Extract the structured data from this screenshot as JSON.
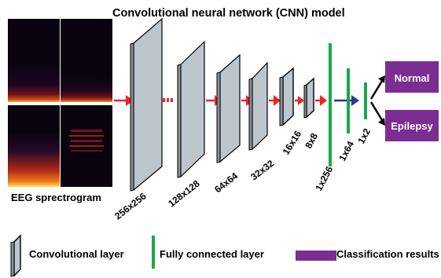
{
  "title": "Convolutional neural network (CNN) model",
  "input": {
    "label": "EEG sprectrogram"
  },
  "layers": [
    {
      "label": "256x256"
    },
    {
      "label": "128x128"
    },
    {
      "label": "64x64"
    },
    {
      "label": "32x32"
    },
    {
      "label": "16x16"
    },
    {
      "label": "8x8"
    }
  ],
  "fully_connected": [
    {
      "label": "1x256"
    },
    {
      "label": "1x64"
    },
    {
      "label": "1x2"
    }
  ],
  "outputs": [
    {
      "label": "Normal"
    },
    {
      "label": "Epilepsy"
    }
  ],
  "legend": {
    "conv": "Convolutional layer",
    "fc": "Fully connected layer",
    "class": "Classification results"
  },
  "colors": {
    "layer_face": "#bcc4cc",
    "arrow_red": "#e8262b",
    "arrow_blue": "#2e3592",
    "fc_green": "#19a84a",
    "output_purple": "#7b2d91",
    "spectrogram_bg": "#0a0410"
  }
}
